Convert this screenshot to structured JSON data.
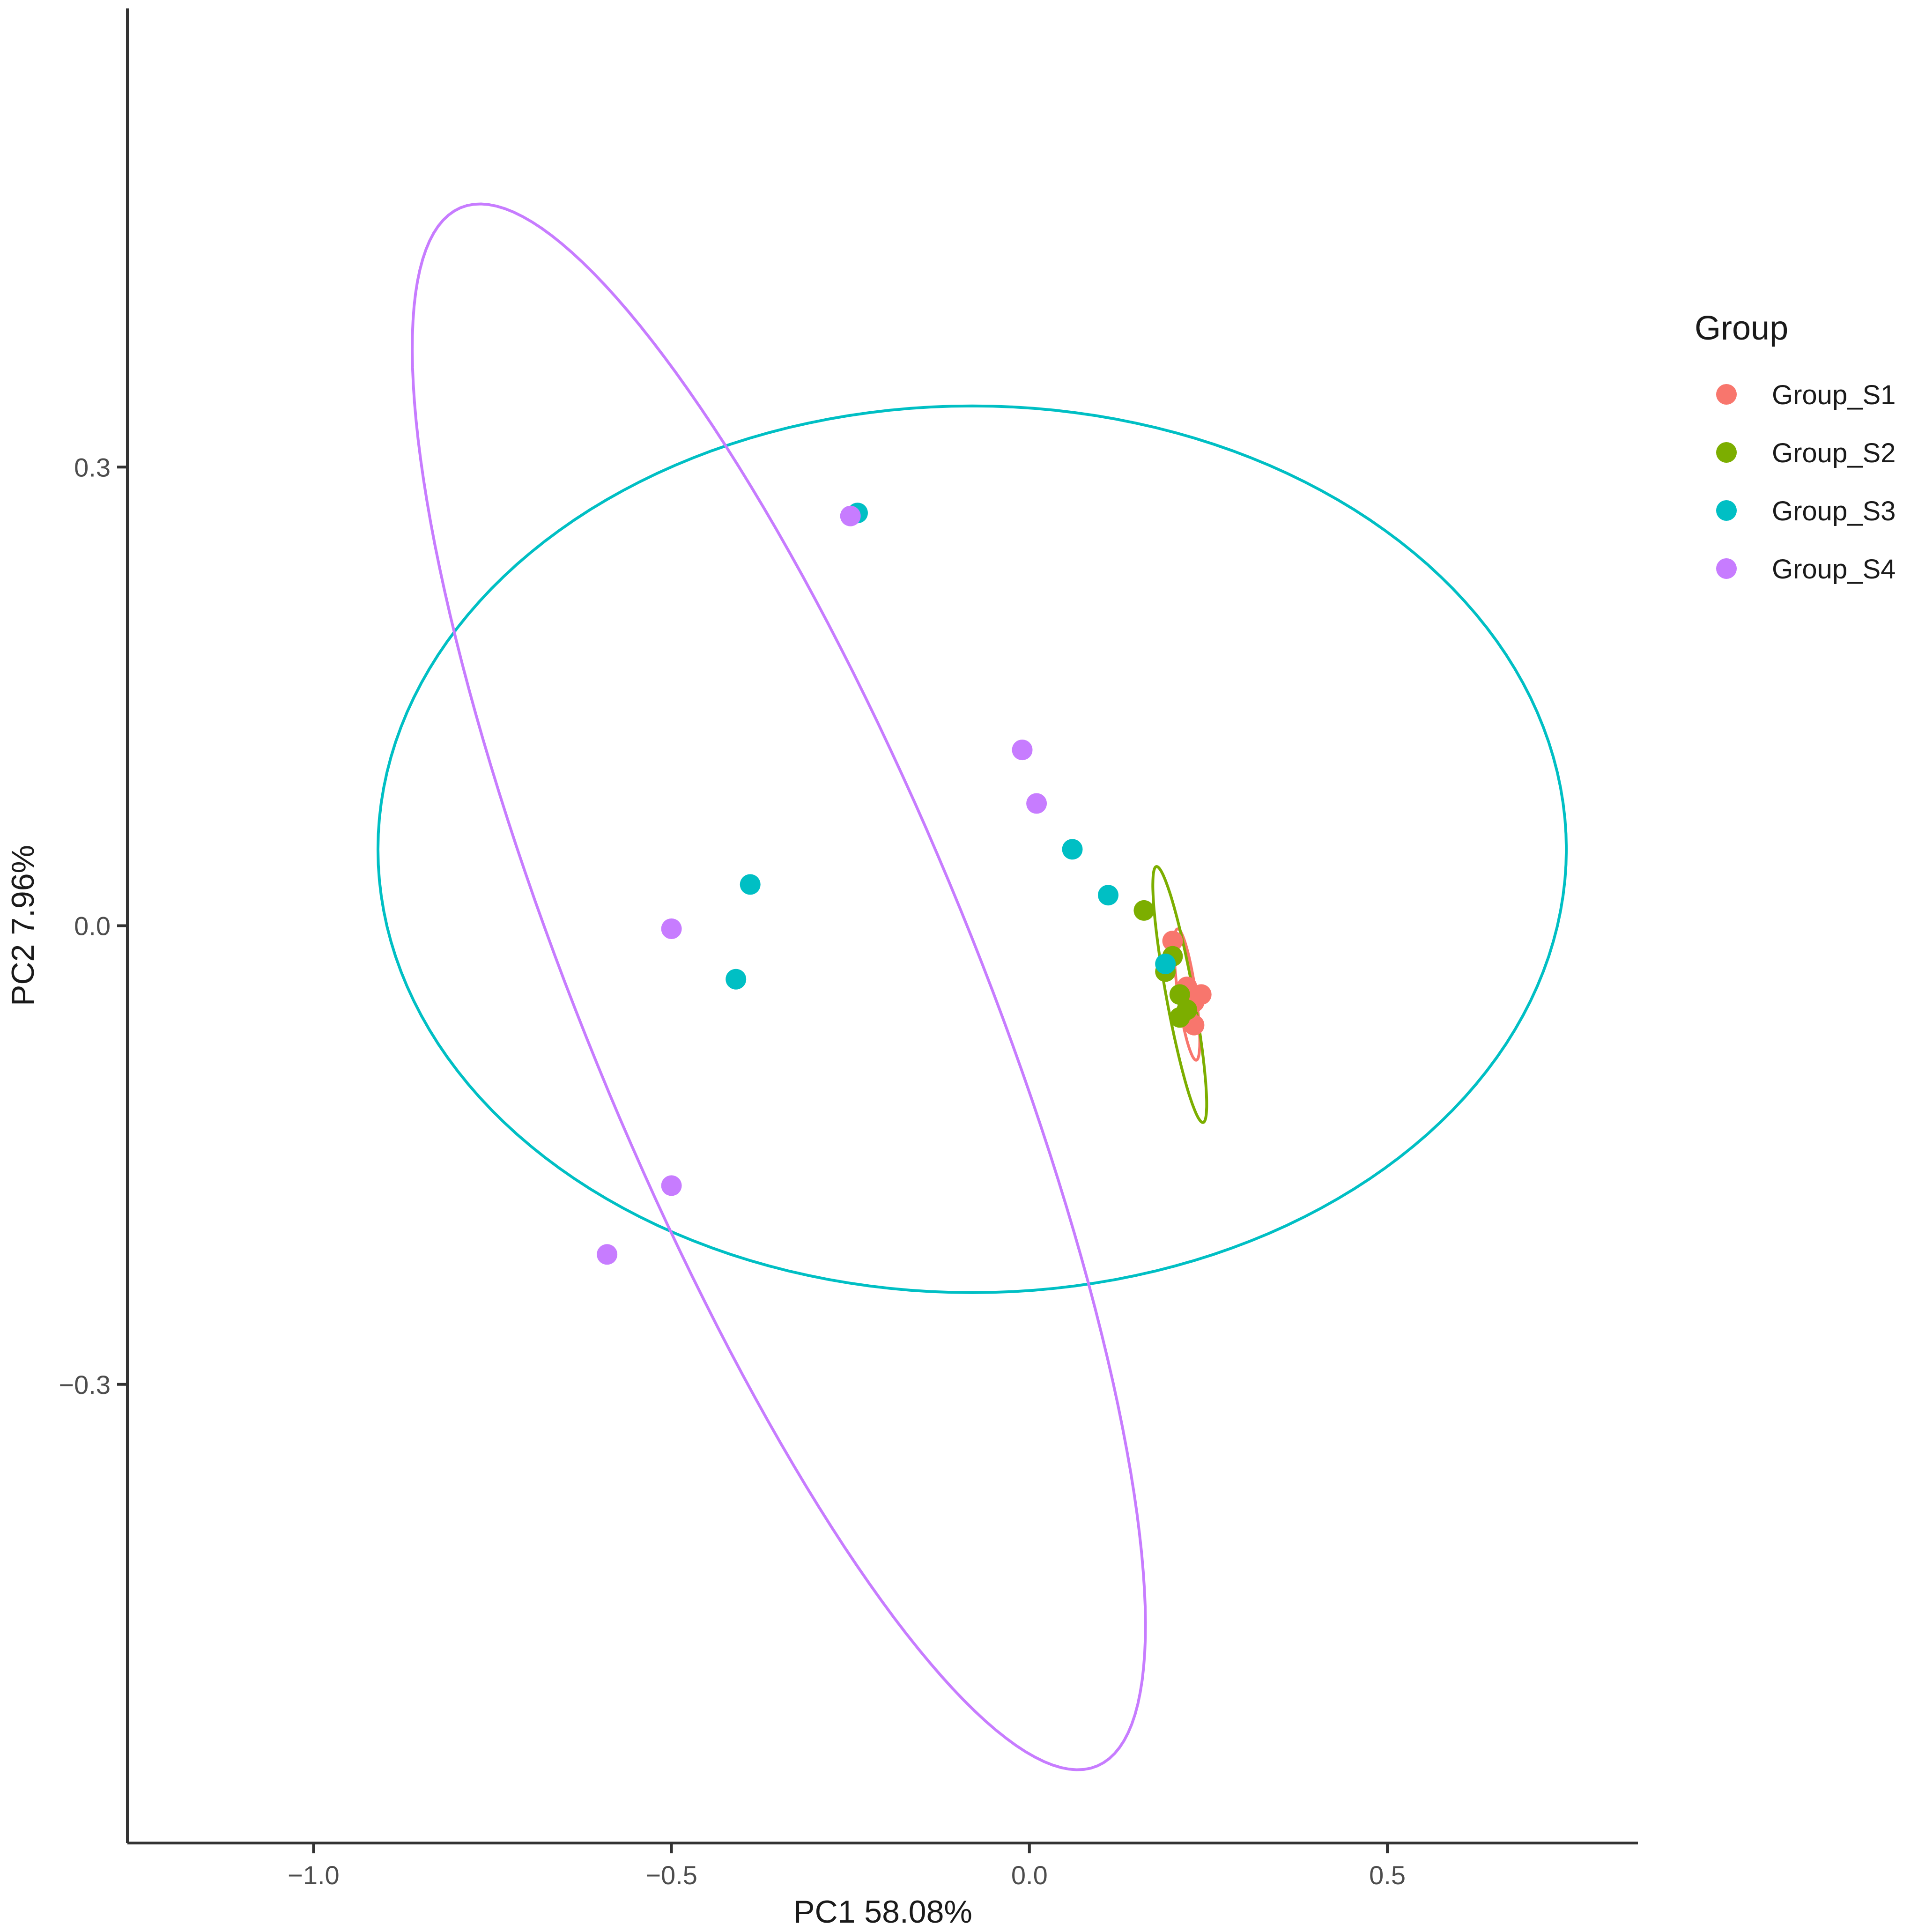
{
  "chart_data": {
    "type": "scatter",
    "xlabel": "PC1 58.08%",
    "ylabel": "PC2 7.96%",
    "xlim": [
      -1.26,
      0.85
    ],
    "ylim": [
      -0.6,
      0.6
    ],
    "x_ticks": [
      {
        "value": -1.0,
        "label": "−1.0"
      },
      {
        "value": -0.5,
        "label": "−0.5"
      },
      {
        "value": 0.0,
        "label": "0.0"
      },
      {
        "value": 0.5,
        "label": "0.5"
      }
    ],
    "y_ticks": [
      {
        "value": -0.3,
        "label": "−0.3"
      },
      {
        "value": 0.0,
        "label": "0.0"
      },
      {
        "value": 0.3,
        "label": "0.3"
      }
    ],
    "grid": false,
    "legend": {
      "title": "Group",
      "position": "right"
    },
    "series": [
      {
        "name": "Group_S1",
        "color": "#F8766D",
        "points": [
          {
            "x": 0.2,
            "y": -0.01,
            "label": ""
          },
          {
            "x": 0.22,
            "y": -0.04,
            "label": ""
          },
          {
            "x": 0.23,
            "y": -0.05,
            "label": ""
          },
          {
            "x": 0.22,
            "y": -0.06,
            "label": ""
          },
          {
            "x": 0.24,
            "y": -0.045,
            "label": ""
          },
          {
            "x": 0.23,
            "y": -0.065,
            "label": ""
          }
        ]
      },
      {
        "name": "Group_S2",
        "color": "#7CAE00",
        "points": [
          {
            "x": 0.16,
            "y": 0.01,
            "label": ""
          },
          {
            "x": 0.19,
            "y": -0.03,
            "label": ""
          },
          {
            "x": 0.21,
            "y": -0.045,
            "label": ""
          },
          {
            "x": 0.22,
            "y": -0.055,
            "label": ""
          },
          {
            "x": 0.2,
            "y": -0.02,
            "label": ""
          },
          {
            "x": 0.21,
            "y": -0.06,
            "label": ""
          }
        ]
      },
      {
        "name": "Group_S3",
        "color": "#00BFC4",
        "points": [
          {
            "x": -0.24,
            "y": 0.27,
            "label": ""
          },
          {
            "x": -0.39,
            "y": 0.027,
            "label": ""
          },
          {
            "x": -0.41,
            "y": -0.035,
            "label": ""
          },
          {
            "x": 0.06,
            "y": 0.05,
            "label": ""
          },
          {
            "x": 0.11,
            "y": 0.02,
            "label": ""
          },
          {
            "x": 0.19,
            "y": -0.025,
            "label": ""
          }
        ]
      },
      {
        "name": "Group_S4",
        "color": "#C77CFF",
        "points": [
          {
            "x": -0.25,
            "y": 0.268,
            "label": ""
          },
          {
            "x": -0.01,
            "y": 0.115,
            "label": ""
          },
          {
            "x": 0.01,
            "y": 0.08,
            "label": ""
          },
          {
            "x": -0.5,
            "y": -0.002,
            "label": ""
          },
          {
            "x": -0.5,
            "y": -0.17,
            "label": ""
          },
          {
            "x": -0.59,
            "y": -0.215,
            "label": ""
          }
        ]
      }
    ],
    "ellipses": [
      {
        "group": "Group_S1",
        "color": "#F8766D",
        "cx": 0.22,
        "cy": -0.045,
        "rx": 0.012,
        "ry": 0.045,
        "angle": 18
      },
      {
        "group": "Group_S2",
        "color": "#7CAE00",
        "cx": 0.21,
        "cy": -0.045,
        "rx": 0.018,
        "ry": 0.09,
        "angle": 22
      },
      {
        "group": "Group_S3",
        "color": "#00BFC4",
        "cx": -0.08,
        "cy": 0.05,
        "rx": 0.83,
        "ry": 0.29,
        "angle": 0
      },
      {
        "group": "Group_S4",
        "color": "#C77CFF",
        "cx": -0.35,
        "cy": -0.04,
        "rx": 0.22,
        "ry": 0.69,
        "angle": 45
      }
    ]
  }
}
